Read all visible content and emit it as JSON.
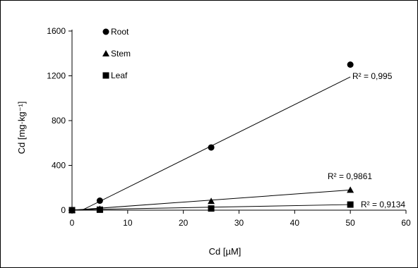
{
  "chart_data": {
    "type": "scatter",
    "title": "",
    "xlabel": "Cd [µM]",
    "ylabel": "Cd [mg·kg⁻¹]",
    "xlim": [
      0,
      60
    ],
    "ylim": [
      0,
      1600
    ],
    "xticks": [
      0,
      10,
      20,
      30,
      40,
      50,
      60
    ],
    "yticks": [
      0,
      400,
      800,
      1200,
      1600
    ],
    "grid": false,
    "legend_position": "top-left",
    "series": [
      {
        "name": "Root",
        "marker": "circle",
        "x": [
          0,
          5,
          25,
          50
        ],
        "y": [
          0,
          85,
          560,
          1300
        ],
        "trendline": {
          "from": [
            1.8,
            0
          ],
          "to": [
            50,
            1190
          ]
        },
        "r2_label": "R² = 0,995"
      },
      {
        "name": "Stem",
        "marker": "triangle",
        "x": [
          0,
          5,
          25,
          50
        ],
        "y": [
          0,
          10,
          80,
          180
        ],
        "trendline": {
          "from": [
            0,
            0
          ],
          "to": [
            50,
            180
          ]
        },
        "r2_label": "R² = 0,9861"
      },
      {
        "name": "Leaf",
        "marker": "square",
        "x": [
          0,
          5,
          25,
          50
        ],
        "y": [
          0,
          4,
          15,
          50
        ],
        "trendline": {
          "from": [
            0,
            3
          ],
          "to": [
            50,
            50
          ]
        },
        "r2_label": "R² = 0,9134"
      }
    ]
  }
}
